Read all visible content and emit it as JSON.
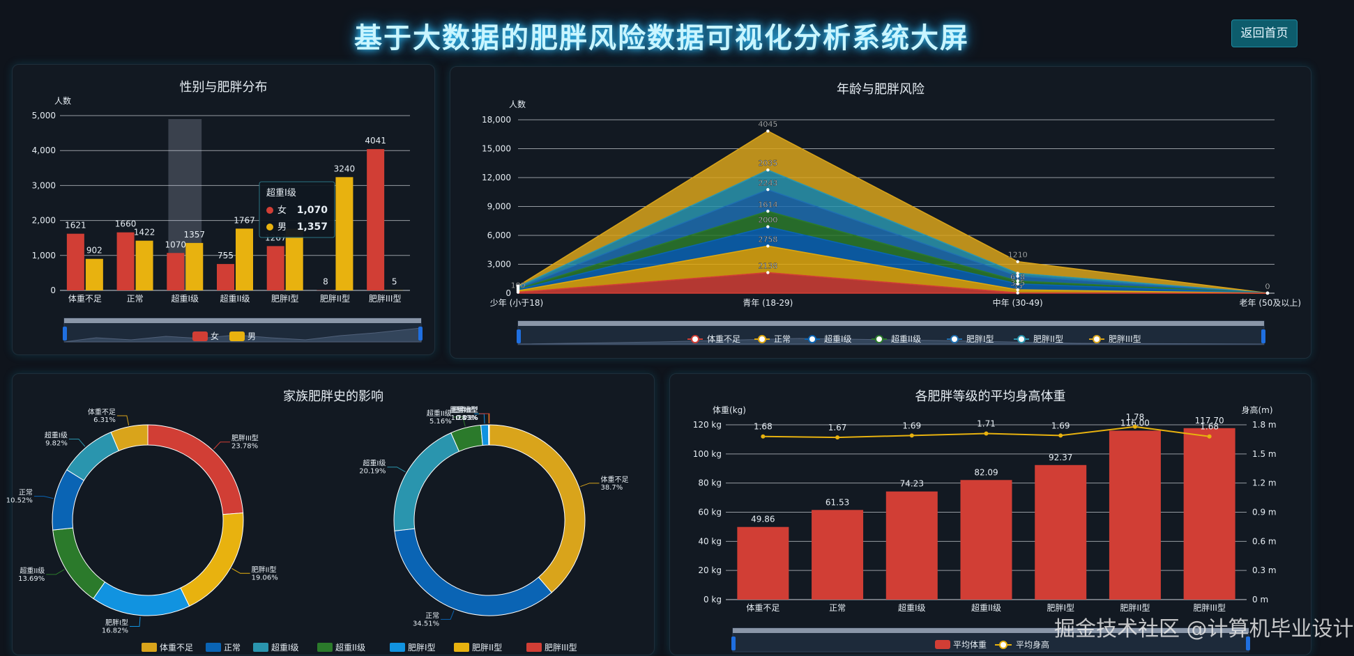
{
  "header": {
    "title": "基于大数据的肥胖风险数据可视化分析系统大屏",
    "home_button": "返回首页"
  },
  "colors": {
    "red": "#d13e35",
    "gold": "#e8b20f",
    "orange_gold": "#d9a41b",
    "blue": "#0a64b4",
    "teal": "#2a95ae",
    "green": "#2b7a2b",
    "skyblue": "#1193e0",
    "panel_bg": "#121922"
  },
  "gender_panel": {
    "title": "性别与肥胖分布",
    "tooltip": {
      "title": "超重I级",
      "female_label": "女",
      "female_value": "1,070",
      "male_label": "男",
      "male_value": "1,357"
    },
    "chart_data": {
      "type": "bar",
      "title": "性别与肥胖分布",
      "ylabel": "人数",
      "ylim": [
        0,
        5000
      ],
      "yticks": [
        "0",
        "1,000",
        "2,000",
        "3,000",
        "4,000",
        "5,000"
      ],
      "categories": [
        "体重不足",
        "正常",
        "超重I级",
        "超重II级",
        "肥胖I型",
        "肥胖II型",
        "肥胖III型"
      ],
      "series": [
        {
          "name": "女",
          "color": "#d13e35",
          "values": [
            1621,
            1660,
            1070,
            755,
            1267,
            8,
            4041
          ]
        },
        {
          "name": "男",
          "color": "#e8b20f",
          "values": [
            902,
            1422,
            1357,
            1767,
            1764,
            3240,
            5
          ]
        }
      ],
      "value_labels": [
        [
          "1621",
          "1660",
          "1070",
          "755",
          "1267",
          "8",
          "4041"
        ],
        [
          "902",
          "1422",
          "1357",
          "1767",
          "",
          "3240",
          "5"
        ]
      ],
      "legend_position": "bottom",
      "grid": true
    }
  },
  "age_panel": {
    "title": "年龄与肥胖风险",
    "chart_data": {
      "type": "area",
      "stacked": true,
      "title": "年龄与肥胖风险",
      "ylabel": "人数",
      "ylim": [
        0,
        18000
      ],
      "yticks": [
        "0",
        "3,000",
        "6,000",
        "9,000",
        "12,000",
        "15,000",
        "18,000"
      ],
      "categories": [
        "少年 (小于18)",
        "青年 (18-29)",
        "中年 (30-49)",
        "老年 (50及以上)"
      ],
      "series": [
        {
          "name": "体重不足",
          "color": "#d13e35",
          "values": [
            100,
            2138,
            35,
            1
          ]
        },
        {
          "name": "正常",
          "color": "#e0a80e",
          "values": [
            150,
            2758,
            315,
            2
          ]
        },
        {
          "name": "超重I级",
          "color": "#0a64b4",
          "values": [
            120,
            2000,
            618,
            2
          ]
        },
        {
          "name": "超重II级",
          "color": "#2b7a2b",
          "values": [
            80,
            1614,
            300,
            1
          ]
        },
        {
          "name": "肥胖I型",
          "color": "#1f6fb0",
          "values": [
            110,
            2243,
            500,
            2
          ]
        },
        {
          "name": "肥胖II型",
          "color": "#2a95ae",
          "values": [
            90,
            2035,
            300,
            2
          ]
        },
        {
          "name": "肥胖III型",
          "color": "#d9a41b",
          "values": [
            100,
            4045,
            1210,
            0
          ]
        }
      ],
      "point_labels": [
        [
          "100",
          "2138",
          "35",
          ""
        ],
        [
          "",
          "2758",
          "315",
          ""
        ],
        [
          "",
          "2000",
          "618",
          ""
        ],
        [
          "",
          "1614",
          "",
          ""
        ],
        [
          "",
          "2243",
          "",
          ""
        ],
        [
          "",
          "2035",
          "",
          ""
        ],
        [
          "",
          "4045",
          "1210",
          "0"
        ]
      ],
      "legend_position": "bottom",
      "grid": true
    }
  },
  "family_panel": {
    "title": "家族肥胖史的影响",
    "chart_data": [
      {
        "type": "pie",
        "donut": true,
        "slices": [
          {
            "label": "肥胖III型",
            "value": 23.78,
            "pct": "23.78%",
            "color": "#d13e35"
          },
          {
            "label": "肥胖II型",
            "value": 19.06,
            "pct": "19.06%",
            "color": "#e8b20f"
          },
          {
            "label": "肥胖I型",
            "value": 16.82,
            "pct": "16.82%",
            "color": "#1193e0"
          },
          {
            "label": "超重II级",
            "value": 13.69,
            "pct": "13.69%",
            "color": "#2b7a2b"
          },
          {
            "label": "正常",
            "value": 10.52,
            "pct": "10.52%",
            "color": "#0a64b4"
          },
          {
            "label": "超重I级",
            "value": 9.82,
            "pct": "9.82%",
            "color": "#2a95ae"
          },
          {
            "label": "体重不足",
            "value": 6.31,
            "pct": "6.31%",
            "color": "#d9a41b"
          }
        ]
      },
      {
        "type": "pie",
        "donut": true,
        "slices": [
          {
            "label": "体重不足",
            "value": 38.7,
            "pct": "38.7%",
            "color": "#d9a41b"
          },
          {
            "label": "正常",
            "value": 34.51,
            "pct": "34.51%",
            "color": "#0a64b4"
          },
          {
            "label": "超重I级",
            "value": 20.19,
            "pct": "20.19%",
            "color": "#2a95ae"
          },
          {
            "label": "超重II级",
            "value": 5.16,
            "pct": "5.16%",
            "color": "#2b7a2b"
          },
          {
            "label": "肥胖I型",
            "value": 1.28,
            "pct": "1.28%",
            "color": "#1193e0"
          },
          {
            "label": "肥胖II型",
            "value": 0.13,
            "pct": "0.13%",
            "color": "#e8b20f"
          },
          {
            "label": "肥胖III型",
            "value": 0.03,
            "pct": "0.03%",
            "color": "#d13e35"
          }
        ]
      }
    ],
    "legend": [
      {
        "name": "体重不足",
        "color": "#d9a41b"
      },
      {
        "name": "正常",
        "color": "#0a64b4"
      },
      {
        "name": "超重I级",
        "color": "#2a95ae"
      },
      {
        "name": "超重II级",
        "color": "#2b7a2b"
      },
      {
        "name": "肥胖I型",
        "color": "#1193e0"
      },
      {
        "name": "肥胖II型",
        "color": "#e8b20f"
      },
      {
        "name": "肥胖III型",
        "color": "#d13e35"
      }
    ]
  },
  "avg_panel": {
    "title": "各肥胖等级的平均身高体重",
    "chart_data": {
      "type": "bar",
      "title": "各肥胖等级的平均身高体重",
      "ylabel": "体重(kg)",
      "ylabel_right": "身高(m)",
      "ylim": [
        0,
        120
      ],
      "ylim_right": [
        0,
        1.8
      ],
      "yticks": [
        "0 kg",
        "20 kg",
        "40 kg",
        "60 kg",
        "80 kg",
        "100 kg",
        "120 kg"
      ],
      "yticks_right": [
        "0 m",
        "0.3 m",
        "0.6 m",
        "0.9 m",
        "1.2 m",
        "1.5 m",
        "1.8 m"
      ],
      "categories": [
        "体重不足",
        "正常",
        "超重I级",
        "超重II级",
        "肥胖I型",
        "肥胖II型",
        "肥胖III型"
      ],
      "series": [
        {
          "name": "平均体重",
          "type": "bar",
          "color": "#d13e35",
          "values": [
            49.86,
            61.53,
            74.23,
            82.09,
            92.37,
            116.0,
            117.7
          ],
          "labels": [
            "49.86",
            "61.53",
            "74.23",
            "82.09",
            "92.37",
            "116.00",
            "117.70"
          ]
        },
        {
          "name": "平均身高",
          "type": "line",
          "color": "#e8b20f",
          "values": [
            1.68,
            1.67,
            1.69,
            1.71,
            1.69,
            1.78,
            1.68
          ],
          "labels": [
            "1.68",
            "1.67",
            "1.69",
            "1.71",
            "1.69",
            "1.78",
            "1.68"
          ]
        }
      ],
      "legend_position": "bottom",
      "grid": true
    }
  },
  "watermark": "掘金技术社区 @计算机毕业设计"
}
